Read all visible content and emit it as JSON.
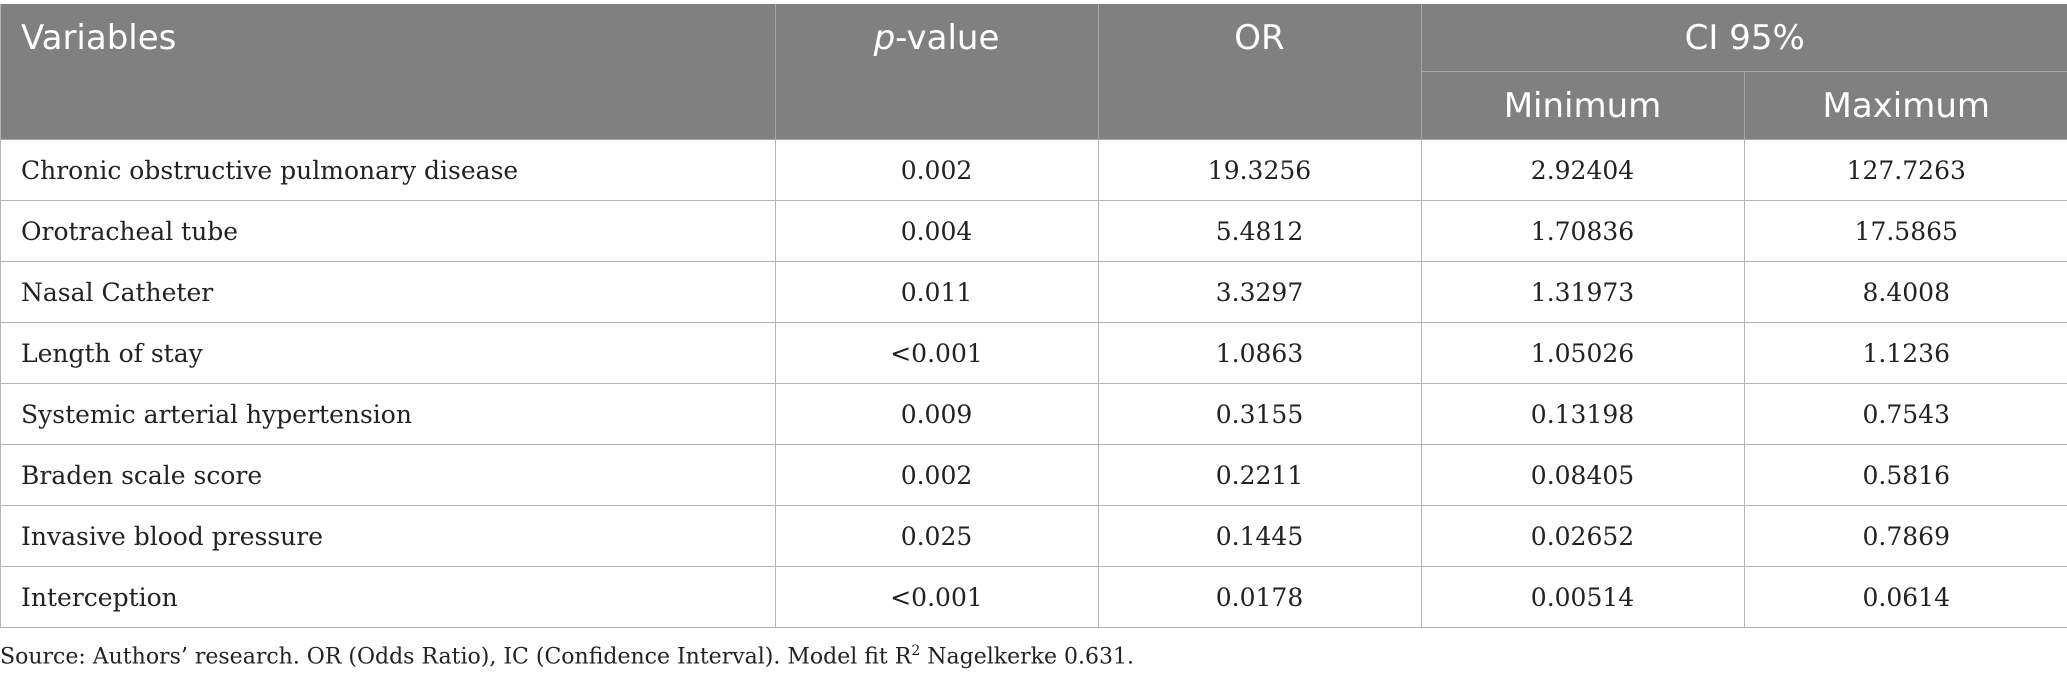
{
  "table": {
    "headers": {
      "variables": "Variables",
      "p_value_italic": "p",
      "p_value_rest": "-value",
      "or": "OR",
      "ci": "CI 95%",
      "minimum": "Minimum",
      "maximum": "Maximum"
    },
    "rows": [
      {
        "variable": "Chronic obstructive pulmonary disease",
        "p": "0.002",
        "or": "19.3256",
        "min": "2.92404",
        "max": "127.7263"
      },
      {
        "variable": "Orotracheal tube",
        "p": "0.004",
        "or": "5.4812",
        "min": "1.70836",
        "max": "17.5865"
      },
      {
        "variable": "Nasal Catheter",
        "p": "0.011",
        "or": "3.3297",
        "min": "1.31973",
        "max": "8.4008"
      },
      {
        "variable": "Length of stay",
        "p": "<0.001",
        "or": "1.0863",
        "min": "1.05026",
        "max": "1.1236"
      },
      {
        "variable": "Systemic arterial hypertension",
        "p": "0.009",
        "or": "0.3155",
        "min": "0.13198",
        "max": "0.7543"
      },
      {
        "variable": "Braden scale score",
        "p": "0.002",
        "or": "0.2211",
        "min": "0.08405",
        "max": "0.5816"
      },
      {
        "variable": "Invasive blood pressure",
        "p": "0.025",
        "or": "0.1445",
        "min": "0.02652",
        "max": "0.7869"
      },
      {
        "variable": "Interception",
        "p": "<0.001",
        "or": "0.0178",
        "min": "0.00514",
        "max": "0.0614"
      }
    ]
  },
  "footnote": {
    "before_sup": "Source: Authors’ research. OR (Odds Ratio), IC (Confidence Interval). Model fit R",
    "sup": "2",
    "after_sup": " Nagelkerke 0.631."
  }
}
